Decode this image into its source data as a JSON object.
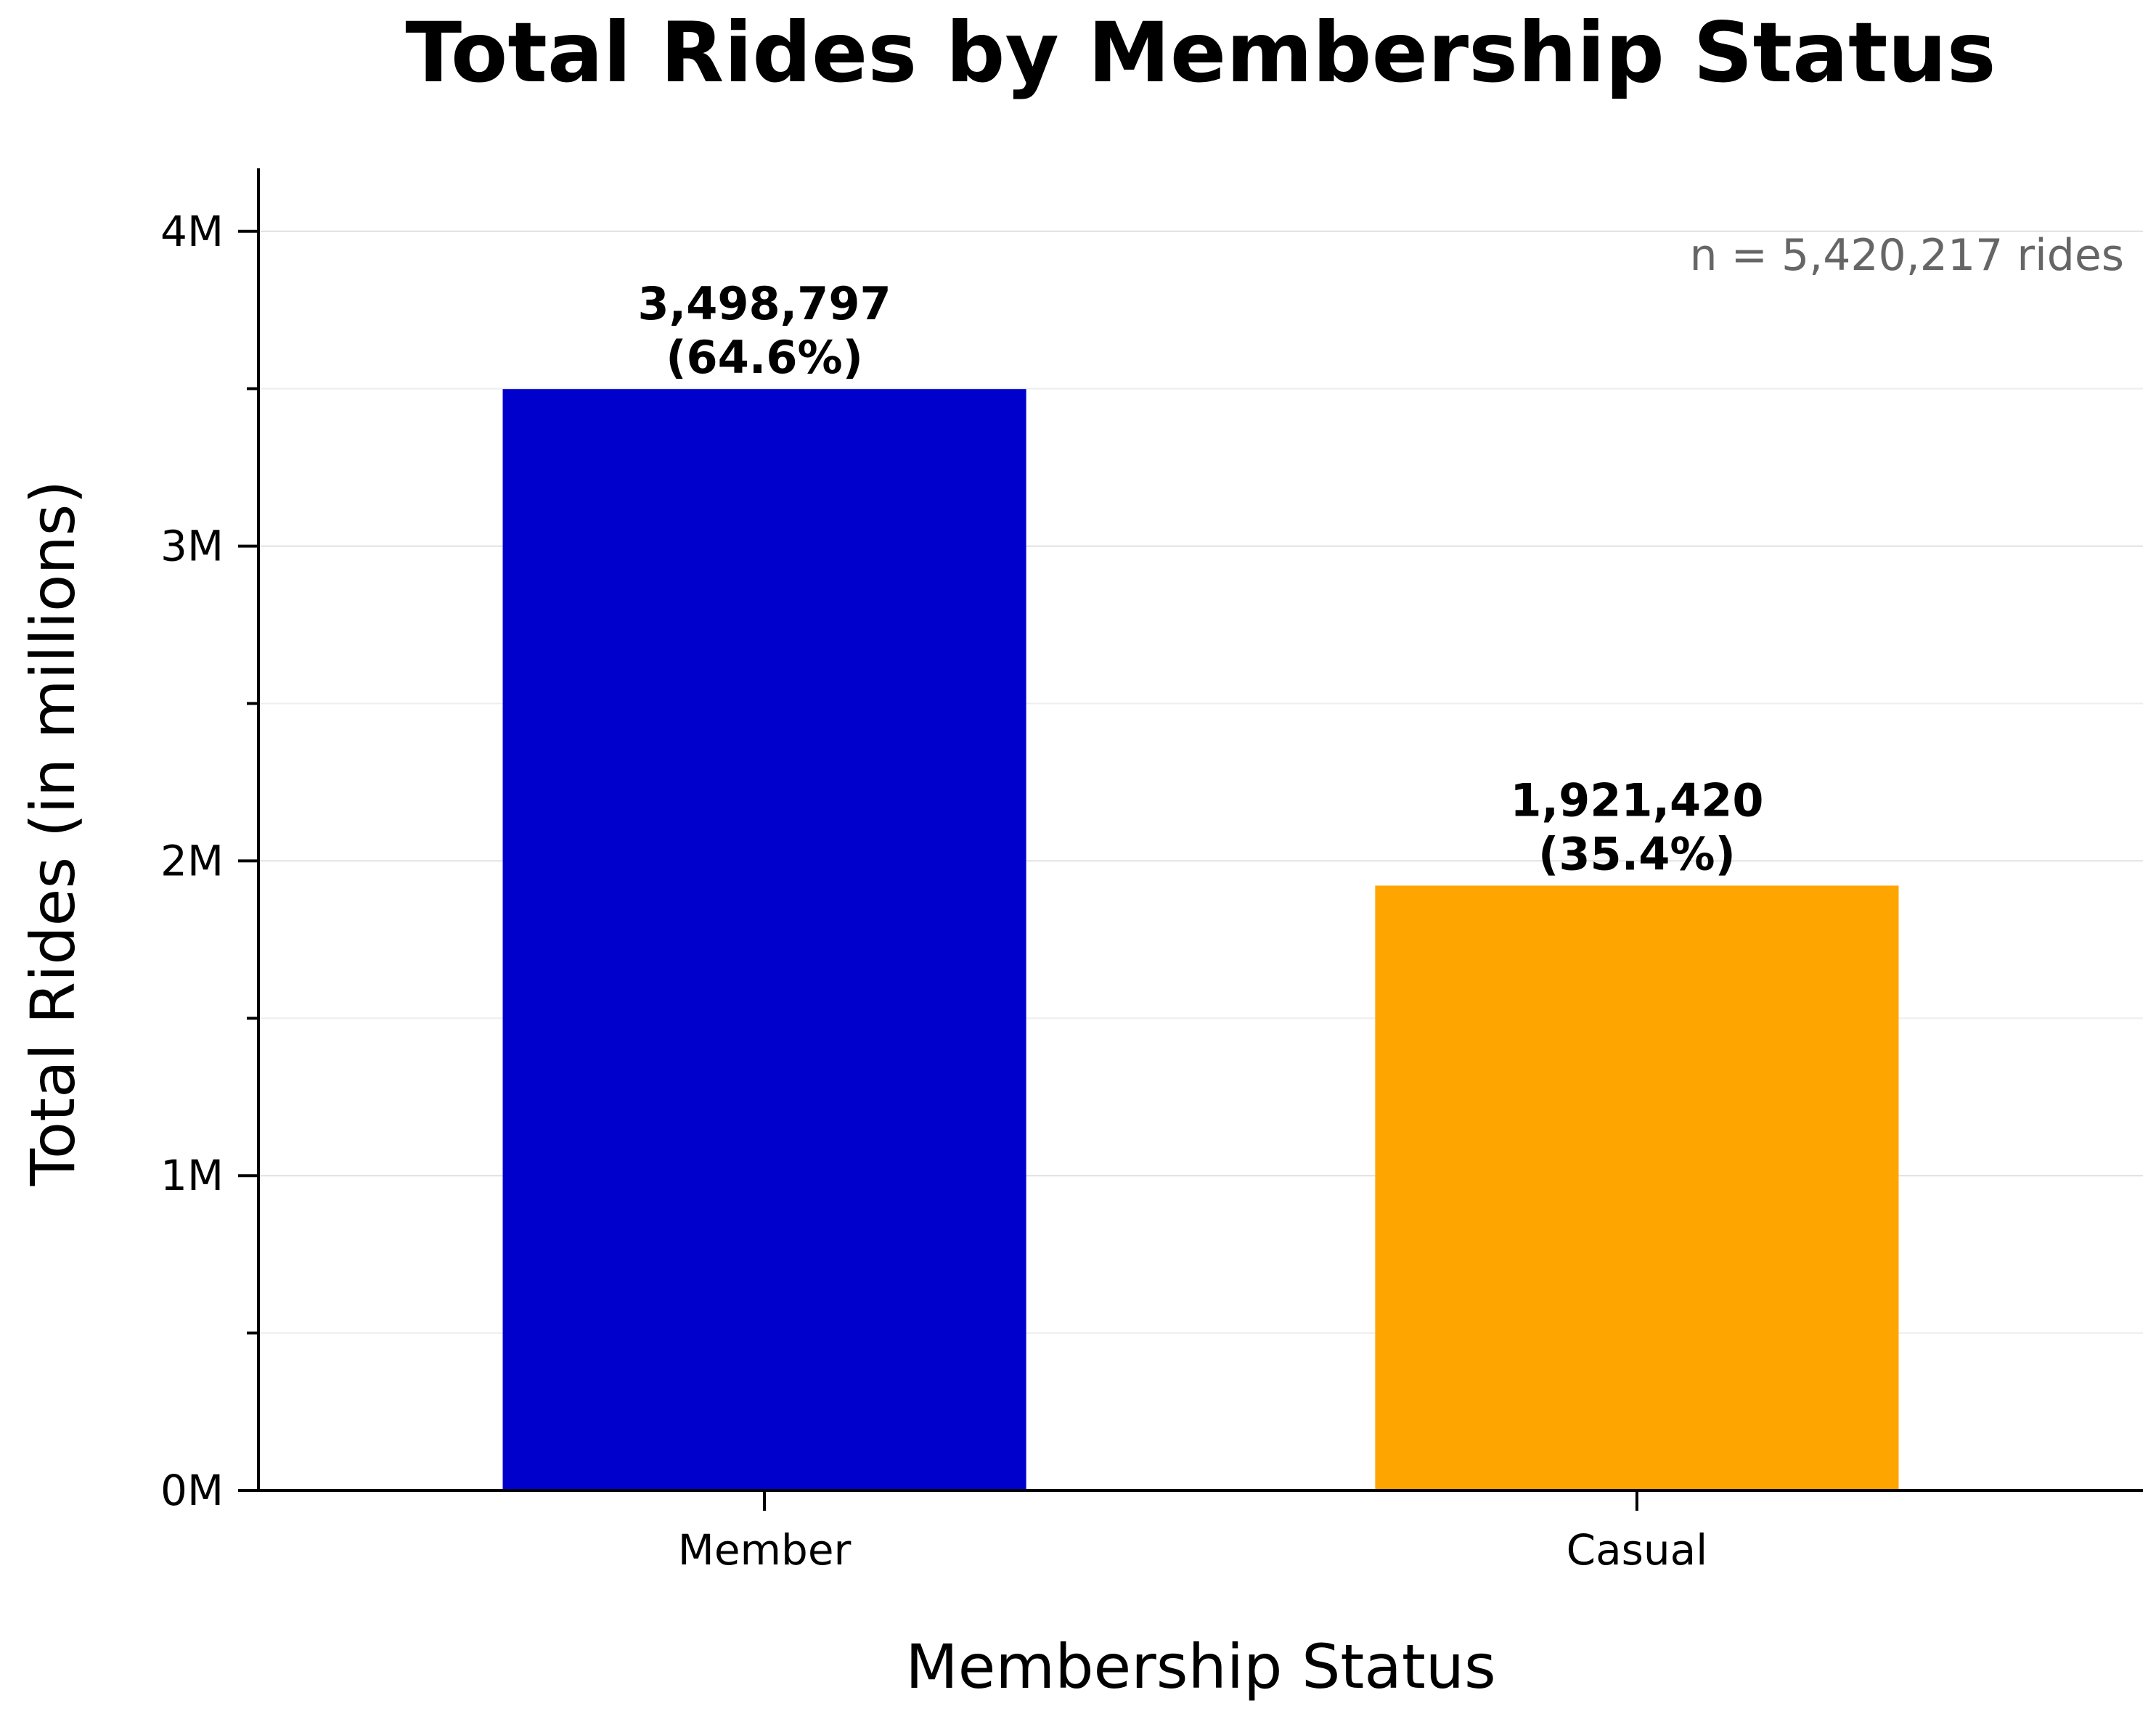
{
  "chart_data": {
    "type": "bar",
    "title": "Total Rides by Membership Status",
    "xlabel": "Membership Status",
    "ylabel": "Total Rides (in millions)",
    "categories": [
      "Member",
      "Casual"
    ],
    "values": [
      3498797,
      1921420
    ],
    "value_labels": [
      "3,498,797",
      "1,921,420"
    ],
    "percent_labels": [
      "(64.6%)",
      "(35.4%)"
    ],
    "colors": [
      "#0000cd",
      "#ffa500"
    ],
    "ylim": [
      0,
      4200000
    ],
    "y_ticks": [
      0,
      1000000,
      2000000,
      3000000,
      4000000
    ],
    "y_tick_labels": [
      "0M",
      "1M",
      "2M",
      "3M",
      "4M"
    ],
    "y_minor_ticks": [
      500000,
      1500000,
      2500000,
      3500000
    ],
    "annotation": "n = 5,420,217 rides",
    "grid": true,
    "legend": "none"
  }
}
